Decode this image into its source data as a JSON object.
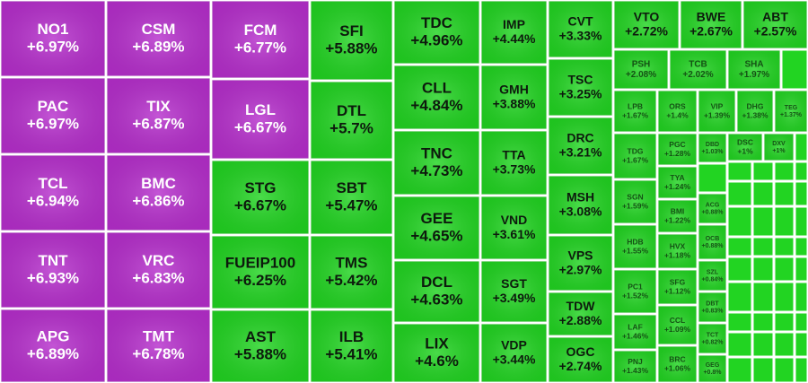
{
  "chart_data": {
    "type": "treemap",
    "categories": [
      "NO1",
      "PAC",
      "TCL",
      "TNT",
      "APG",
      "CSM",
      "TIX",
      "BMC",
      "VRC",
      "TMT",
      "FCM",
      "LGL",
      "STG",
      "FUEIP100",
      "AST",
      "SFI",
      "DTL",
      "SBT",
      "TMS",
      "ILB",
      "TDC",
      "CLL",
      "TNC",
      "GEE",
      "DCL",
      "LIX",
      "IMP",
      "GMH",
      "TTA",
      "VND",
      "SGT",
      "VDP",
      "CVT",
      "TSC",
      "DRC",
      "MSH",
      "VPS",
      "TDW",
      "OGC",
      "VTO",
      "BWE",
      "ABT",
      "PSH",
      "TCB",
      "SHA",
      "LPB",
      "ORS",
      "VIP",
      "DHG",
      "TEG",
      "TDG",
      "SGN",
      "HDB",
      "PC1",
      "LAF",
      "PNJ",
      "PGC",
      "TYA",
      "BMI",
      "HVX",
      "SFG",
      "CCL",
      "BRC",
      "DBD",
      "ACG",
      "OCB",
      "SZL",
      "DBT",
      "TCT",
      "GEG",
      "DSC",
      "DXV"
    ],
    "values": [
      6.97,
      6.97,
      6.94,
      6.93,
      6.89,
      6.89,
      6.87,
      6.86,
      6.83,
      6.78,
      6.77,
      6.67,
      6.67,
      6.25,
      5.88,
      5.88,
      5.7,
      5.47,
      5.42,
      5.41,
      4.96,
      4.84,
      4.73,
      4.65,
      4.63,
      4.6,
      4.44,
      3.88,
      3.73,
      3.61,
      3.49,
      3.44,
      3.33,
      3.25,
      3.21,
      3.08,
      2.97,
      2.88,
      2.74,
      2.72,
      2.67,
      2.57,
      2.08,
      2.02,
      1.97,
      1.67,
      1.4,
      1.39,
      1.38,
      1.37,
      1.67,
      1.59,
      1.55,
      1.52,
      1.46,
      1.43,
      1.28,
      1.24,
      1.22,
      1.18,
      1.12,
      1.09,
      1.06,
      1.03,
      0.88,
      0.88,
      0.84,
      0.83,
      0.82,
      0.8,
      1,
      1
    ],
    "value_labels": [
      "+6.97%",
      "+6.97%",
      "+6.94%",
      "+6.93%",
      "+6.89%",
      "+6.89%",
      "+6.87%",
      "+6.86%",
      "+6.83%",
      "+6.78%",
      "+6.77%",
      "+6.67%",
      "+6.67%",
      "+6.25%",
      "+5.88%",
      "+5.88%",
      "+5.7%",
      "+5.47%",
      "+5.42%",
      "+5.41%",
      "+4.96%",
      "+4.84%",
      "+4.73%",
      "+4.65%",
      "+4.63%",
      "+4.6%",
      "+4.44%",
      "+3.88%",
      "+3.73%",
      "+3.61%",
      "+3.49%",
      "+3.44%",
      "+3.33%",
      "+3.25%",
      "+3.21%",
      "+3.08%",
      "+2.97%",
      "+2.88%",
      "+2.74%",
      "+2.72%",
      "+2.67%",
      "+2.57%",
      "+2.08%",
      "+2.02%",
      "+1.97%",
      "+1.67%",
      "+1.4%",
      "+1.39%",
      "+1.38%",
      "+1.37%",
      "+1.67%",
      "+1.59%",
      "+1.55%",
      "+1.52%",
      "+1.46%",
      "+1.43%",
      "+1.28%",
      "+1.24%",
      "+1.22%",
      "+1.18%",
      "+1.12%",
      "+1.09%",
      "+1.06%",
      "+1.03%",
      "+0.88%",
      "+0.88%",
      "+0.84%",
      "+0.83%",
      "+0.82%",
      "+0.8%",
      "+1%",
      "+1%"
    ],
    "ceiling_color": "#b62fcc",
    "up_color": "#22d422"
  }
}
